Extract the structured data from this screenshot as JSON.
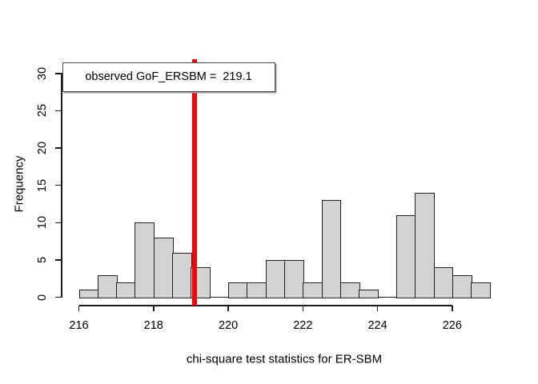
{
  "window": {
    "background": "#ffffff"
  },
  "chart_data": {
    "type": "bar",
    "subtype": "histogram",
    "title": "",
    "xlabel": "chi-square test statistics for ER-SBM",
    "ylabel": "Frequency",
    "bin_start": 216,
    "bin_width": 0.5,
    "counts": [
      1,
      3,
      2,
      10,
      8,
      6,
      4,
      0,
      2,
      2,
      5,
      5,
      2,
      13,
      2,
      1,
      0,
      11,
      14,
      4,
      3,
      2
    ],
    "x_ticks": [
      216,
      218,
      220,
      222,
      224,
      226
    ],
    "y_ticks": [
      0,
      5,
      10,
      15,
      20,
      25,
      30
    ],
    "xlim": [
      215.56,
      227.44
    ],
    "ylim": [
      -1.2,
      31.2
    ],
    "grid": false,
    "legend_position": "topleft",
    "bar_fill": "#d3d3d3",
    "bar_border": "#212121",
    "axis_color": "#1a1a1a",
    "vline": {
      "value": 219.1,
      "color": "#ff0000",
      "label": "observed GoF_ERSBM =  219.1"
    }
  }
}
